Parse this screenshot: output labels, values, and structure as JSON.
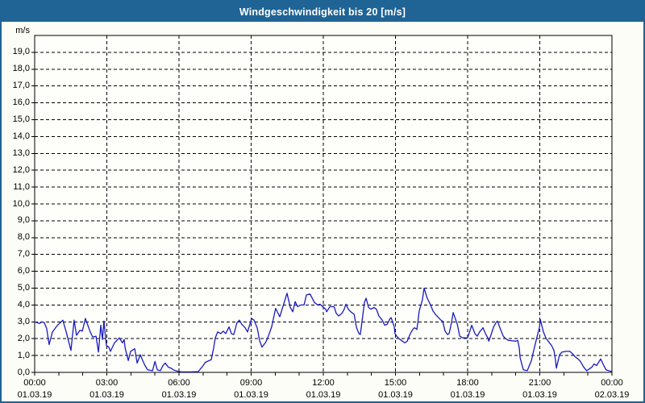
{
  "title": "Windgeschwindigkeit bis 20 [m/s]",
  "colors": {
    "frame": "#1e6494",
    "titlebar_bg": "#1f6495",
    "title_text": "#ffffff",
    "background": "#fbfdf6",
    "plot_bg": "#fefffb",
    "grid": "#000000",
    "axis": "#000000",
    "line": "#1a1abe",
    "label_text": "#000000"
  },
  "chart_data": {
    "type": "line",
    "title": "Windgeschwindigkeit bis 20 [m/s]",
    "xlabel": "",
    "ylabel": "m/s",
    "x_unit_hours_from": "01.03.19 00:00",
    "xlim": [
      0,
      24
    ],
    "ylim": [
      0,
      20
    ],
    "grid": "dashed",
    "legend": "none",
    "y_tick_step": 1,
    "y_tick_labels": [
      "0,0",
      "1,0",
      "2,0",
      "3,0",
      "4,0",
      "5,0",
      "6,0",
      "7,0",
      "8,0",
      "9,0",
      "10,0",
      "11,0",
      "12,0",
      "13,0",
      "14,0",
      "15,0",
      "16,0",
      "17,0",
      "18,0",
      "19,0"
    ],
    "x_minor_tick_hours": 1,
    "x_ticks": [
      {
        "h": 0,
        "time": "00:00",
        "date": "01.03.19"
      },
      {
        "h": 3,
        "time": "03:00",
        "date": "01.03.19"
      },
      {
        "h": 6,
        "time": "06:00",
        "date": "01.03.19"
      },
      {
        "h": 9,
        "time": "09:00",
        "date": "01.03.19"
      },
      {
        "h": 12,
        "time": "12:00",
        "date": "01.03.19"
      },
      {
        "h": 15,
        "time": "15:00",
        "date": "01.03.19"
      },
      {
        "h": 18,
        "time": "18:00",
        "date": "01.03.19"
      },
      {
        "h": 21,
        "time": "21:00",
        "date": "01.03.19"
      },
      {
        "h": 24,
        "time": "00:00",
        "date": "02.03.19"
      }
    ],
    "series": [
      {
        "name": "Windgeschwindigkeit",
        "unit": "m/s",
        "color": "#1a1abe",
        "points": [
          [
            0,
            3.0
          ],
          [
            0.1,
            2.95
          ],
          [
            0.2,
            2.9
          ],
          [
            0.3,
            3.0
          ],
          [
            0.4,
            2.95
          ],
          [
            0.5,
            2.6
          ],
          [
            0.6,
            1.65
          ],
          [
            0.74,
            2.4
          ],
          [
            0.84,
            2.6
          ],
          [
            0.95,
            2.8
          ],
          [
            1.07,
            2.95
          ],
          [
            1.17,
            3.1
          ],
          [
            1.31,
            2.4
          ],
          [
            1.51,
            1.3
          ],
          [
            1.64,
            3.1
          ],
          [
            1.74,
            2.2
          ],
          [
            1.88,
            2.5
          ],
          [
            1.98,
            2.45
          ],
          [
            2.11,
            3.2
          ],
          [
            2.31,
            2.4
          ],
          [
            2.41,
            2.1
          ],
          [
            2.55,
            2.15
          ],
          [
            2.65,
            1.2
          ],
          [
            2.75,
            2.8
          ],
          [
            2.82,
            1.95
          ],
          [
            2.88,
            3.05
          ],
          [
            2.98,
            1.6
          ],
          [
            3.08,
            1.5
          ],
          [
            3.15,
            1.25
          ],
          [
            3.32,
            1.75
          ],
          [
            3.52,
            2.05
          ],
          [
            3.65,
            1.75
          ],
          [
            3.72,
            1.95
          ],
          [
            3.76,
            1.45
          ],
          [
            3.89,
            0.7
          ],
          [
            3.99,
            1.25
          ],
          [
            4.16,
            1.4
          ],
          [
            4.26,
            0.55
          ],
          [
            4.39,
            1.05
          ],
          [
            4.49,
            0.7
          ],
          [
            4.59,
            0.4
          ],
          [
            4.7,
            0.15
          ],
          [
            4.9,
            0.1
          ],
          [
            5.0,
            0.65
          ],
          [
            5.1,
            0.15
          ],
          [
            5.23,
            0.1
          ],
          [
            5.33,
            0.4
          ],
          [
            5.43,
            0.55
          ],
          [
            5.56,
            0.3
          ],
          [
            5.67,
            0.25
          ],
          [
            5.77,
            0.15
          ],
          [
            5.9,
            0.08
          ],
          [
            6.1,
            0.03
          ],
          [
            6.5,
            0.03
          ],
          [
            6.8,
            0.05
          ],
          [
            6.95,
            0.3
          ],
          [
            7.1,
            0.6
          ],
          [
            7.25,
            0.7
          ],
          [
            7.34,
            0.75
          ],
          [
            7.44,
            1.45
          ],
          [
            7.51,
            2.05
          ],
          [
            7.61,
            2.4
          ],
          [
            7.74,
            2.3
          ],
          [
            7.84,
            2.45
          ],
          [
            7.94,
            2.3
          ],
          [
            8.08,
            2.7
          ],
          [
            8.18,
            2.3
          ],
          [
            8.28,
            2.25
          ],
          [
            8.41,
            2.95
          ],
          [
            8.51,
            3.1
          ],
          [
            8.61,
            2.85
          ],
          [
            8.75,
            2.65
          ],
          [
            8.85,
            2.4
          ],
          [
            9.02,
            3.2
          ],
          [
            9.12,
            3.1
          ],
          [
            9.25,
            2.65
          ],
          [
            9.35,
            1.9
          ],
          [
            9.45,
            1.5
          ],
          [
            9.59,
            1.75
          ],
          [
            9.69,
            2.05
          ],
          [
            9.85,
            2.7
          ],
          [
            10.02,
            3.8
          ],
          [
            10.19,
            3.3
          ],
          [
            10.49,
            4.7
          ],
          [
            10.63,
            3.85
          ],
          [
            10.73,
            3.6
          ],
          [
            10.83,
            4.2
          ],
          [
            10.93,
            3.9
          ],
          [
            11.05,
            4.0
          ],
          [
            11.2,
            4.0
          ],
          [
            11.3,
            4.6
          ],
          [
            11.45,
            4.65
          ],
          [
            11.63,
            4.15
          ],
          [
            11.77,
            4.0
          ],
          [
            11.87,
            4.05
          ],
          [
            11.97,
            3.9
          ],
          [
            12.1,
            3.75
          ],
          [
            12.14,
            3.6
          ],
          [
            12.27,
            3.9
          ],
          [
            12.45,
            3.9
          ],
          [
            12.54,
            3.5
          ],
          [
            12.64,
            3.35
          ],
          [
            12.77,
            3.5
          ],
          [
            12.87,
            3.75
          ],
          [
            12.94,
            4.05
          ],
          [
            13.04,
            3.75
          ],
          [
            13.14,
            3.6
          ],
          [
            13.28,
            3.45
          ],
          [
            13.38,
            2.65
          ],
          [
            13.48,
            2.3
          ],
          [
            13.54,
            2.25
          ],
          [
            13.64,
            3.35
          ],
          [
            13.71,
            4.15
          ],
          [
            13.78,
            4.4
          ],
          [
            13.88,
            3.85
          ],
          [
            13.98,
            3.75
          ],
          [
            14.11,
            3.85
          ],
          [
            14.21,
            3.75
          ],
          [
            14.31,
            3.35
          ],
          [
            14.45,
            3.1
          ],
          [
            14.55,
            2.8
          ],
          [
            14.65,
            2.85
          ],
          [
            14.78,
            3.2
          ],
          [
            14.82,
            3.25
          ],
          [
            14.95,
            2.7
          ],
          [
            14.98,
            2.3
          ],
          [
            15.05,
            2.15
          ],
          [
            15.15,
            2.0
          ],
          [
            15.29,
            1.85
          ],
          [
            15.39,
            1.75
          ],
          [
            15.49,
            1.85
          ],
          [
            15.62,
            2.3
          ],
          [
            15.72,
            2.55
          ],
          [
            15.79,
            2.65
          ],
          [
            15.89,
            2.55
          ],
          [
            15.99,
            3.65
          ],
          [
            16.12,
            4.3
          ],
          [
            16.19,
            5.0
          ],
          [
            16.32,
            4.4
          ],
          [
            16.46,
            4.0
          ],
          [
            16.56,
            3.65
          ],
          [
            16.66,
            3.45
          ],
          [
            16.79,
            3.25
          ],
          [
            16.89,
            3.1
          ],
          [
            16.96,
            3.05
          ],
          [
            17.06,
            2.45
          ],
          [
            17.16,
            2.25
          ],
          [
            17.23,
            2.3
          ],
          [
            17.33,
            2.95
          ],
          [
            17.4,
            3.55
          ],
          [
            17.57,
            2.85
          ],
          [
            17.67,
            2.15
          ],
          [
            17.8,
            2.05
          ],
          [
            18.0,
            2.05
          ],
          [
            18.17,
            2.8
          ],
          [
            18.3,
            2.3
          ],
          [
            18.4,
            2.15
          ],
          [
            18.5,
            2.4
          ],
          [
            18.64,
            2.65
          ],
          [
            18.74,
            2.3
          ],
          [
            18.84,
            2.05
          ],
          [
            18.88,
            1.85
          ],
          [
            18.98,
            2.25
          ],
          [
            19.08,
            2.7
          ],
          [
            19.18,
            2.95
          ],
          [
            19.24,
            3.05
          ],
          [
            19.34,
            2.65
          ],
          [
            19.48,
            2.15
          ],
          [
            19.58,
            2.0
          ],
          [
            19.7,
            1.9
          ],
          [
            20.0,
            1.85
          ],
          [
            20.08,
            1.9
          ],
          [
            20.15,
            1.45
          ],
          [
            20.18,
            0.9
          ],
          [
            20.25,
            0.5
          ],
          [
            20.32,
            0.15
          ],
          [
            20.48,
            0.1
          ],
          [
            20.65,
            0.7
          ],
          [
            20.75,
            1.3
          ],
          [
            20.85,
            1.9
          ],
          [
            20.99,
            2.7
          ],
          [
            21.02,
            3.15
          ],
          [
            21.15,
            2.4
          ],
          [
            21.25,
            2.05
          ],
          [
            21.35,
            1.85
          ],
          [
            21.49,
            1.6
          ],
          [
            21.59,
            1.3
          ],
          [
            21.66,
            0.65
          ],
          [
            21.69,
            0.25
          ],
          [
            21.82,
            1.05
          ],
          [
            21.92,
            1.2
          ],
          [
            22.1,
            1.25
          ],
          [
            22.25,
            1.25
          ],
          [
            22.36,
            1.1
          ],
          [
            22.49,
            0.9
          ],
          [
            22.59,
            0.8
          ],
          [
            22.69,
            0.65
          ],
          [
            22.83,
            0.3
          ],
          [
            22.95,
            0.1
          ],
          [
            23.16,
            0.3
          ],
          [
            23.26,
            0.5
          ],
          [
            23.36,
            0.4
          ],
          [
            23.49,
            0.7
          ],
          [
            23.53,
            0.8
          ],
          [
            23.66,
            0.4
          ],
          [
            23.76,
            0.15
          ],
          [
            23.86,
            0.1
          ],
          [
            24.0,
            0.05
          ]
        ]
      }
    ]
  }
}
